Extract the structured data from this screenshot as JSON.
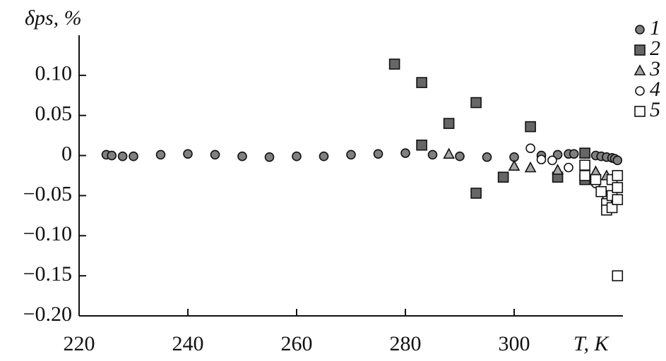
{
  "chart_data": {
    "type": "scatter",
    "x_label": "T, K",
    "y_label": "δps, %",
    "xlim": [
      220,
      320
    ],
    "xticks": [
      220,
      240,
      260,
      280,
      300
    ],
    "ylim": [
      -0.2,
      0.15
    ],
    "yticks": [
      {
        "value": -0.2,
        "label": "−0.20"
      },
      {
        "value": -0.15,
        "label": "−0.15"
      },
      {
        "value": -0.1,
        "label": "−0.10"
      },
      {
        "value": -0.05,
        "label": "−0.05"
      },
      0,
      {
        "value": 0.05,
        "label": "0.05"
      },
      {
        "value": 0.1,
        "label": "0.10"
      }
    ],
    "legend": "upper right",
    "series": [
      {
        "name": "1",
        "marker": "circle",
        "color": "#808080",
        "x": [
          225,
          226,
          228,
          230,
          235,
          240,
          245,
          250,
          255,
          260,
          265,
          270,
          275,
          280,
          285,
          290,
          295,
          300,
          305,
          308,
          310,
          311,
          313,
          315,
          316,
          317,
          318,
          318.5,
          319
        ],
        "values": [
          0.001,
          0,
          -0.001,
          -0.001,
          0.001,
          0.002,
          0.001,
          -0.001,
          -0.002,
          -0.001,
          -0.001,
          0.001,
          0.002,
          0.003,
          0.001,
          -0.001,
          -0.002,
          -0.002,
          0,
          0.001,
          0.002,
          0.002,
          0.002,
          0,
          -0.001,
          -0.002,
          -0.003,
          -0.004,
          -0.006
        ]
      },
      {
        "name": "2",
        "marker": "square",
        "color": "#666666",
        "x": [
          278,
          283,
          283,
          288,
          293,
          293,
          298,
          303,
          308,
          313,
          313
        ],
        "values": [
          0.114,
          0.091,
          0.013,
          0.04,
          0.066,
          -0.047,
          -0.027,
          0.036,
          -0.027,
          0.003,
          -0.03
        ]
      },
      {
        "name": "3",
        "marker": "triangle",
        "color": "#a6a6a6",
        "x": [
          288,
          300,
          303,
          308,
          315,
          317
        ],
        "values": [
          0.002,
          -0.013,
          -0.015,
          -0.018,
          -0.02,
          -0.025
        ]
      },
      {
        "name": "4",
        "marker": "circle",
        "color": "#ffffff",
        "x": [
          303,
          305,
          307,
          310,
          313,
          315,
          317,
          318
        ],
        "values": [
          0.009,
          -0.005,
          -0.006,
          -0.015,
          -0.025,
          -0.035,
          -0.05,
          -0.06
        ]
      },
      {
        "name": "5",
        "marker": "square",
        "color": "#ffffff",
        "x": [
          313,
          313,
          315,
          316,
          317,
          317,
          318,
          318,
          318,
          319,
          319,
          319,
          319
        ],
        "values": [
          -0.012,
          -0.025,
          -0.03,
          -0.045,
          -0.06,
          -0.068,
          -0.065,
          -0.03,
          -0.05,
          -0.04,
          -0.055,
          -0.025,
          -0.15
        ]
      }
    ]
  }
}
